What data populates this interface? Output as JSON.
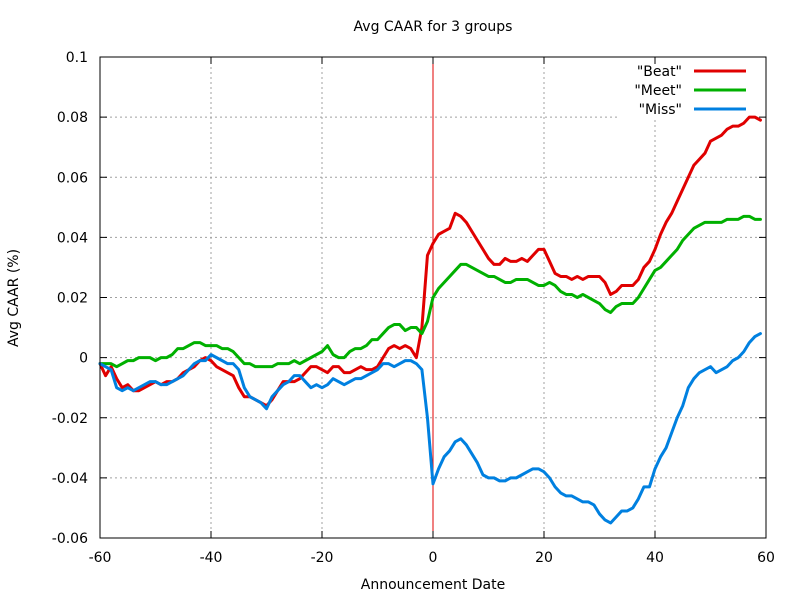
{
  "chart_data": {
    "type": "line",
    "title": "Avg CAAR for 3 groups",
    "xlabel": "Announcement Date",
    "ylabel": "Avg CAAR (%)",
    "xlim": [
      -60,
      60
    ],
    "ylim": [
      -0.06,
      0.1
    ],
    "xticks": [
      -60,
      -40,
      -20,
      0,
      20,
      40,
      60
    ],
    "xtick_labels": [
      "-60",
      "-40",
      "-20",
      "0",
      "20",
      "40",
      "60"
    ],
    "yticks": [
      -0.06,
      -0.04,
      -0.02,
      0,
      0.02,
      0.04,
      0.06,
      0.08,
      0.1
    ],
    "ytick_labels": [
      "-0.06",
      "-0.04",
      "-0.02",
      "0",
      "0.02",
      "0.04",
      "0.06",
      "0.08",
      "0.1"
    ],
    "grid": true,
    "legend_position": "top-right",
    "vertical_marker": {
      "x": 0,
      "color": "#e00000"
    },
    "series": [
      {
        "name": "\"Beat\"",
        "color": "#e00000",
        "x": [
          -60,
          -59,
          -58,
          -57,
          -56,
          -55,
          -54,
          -53,
          -52,
          -51,
          -50,
          -49,
          -48,
          -47,
          -46,
          -45,
          -44,
          -43,
          -42,
          -41,
          -40,
          -39,
          -38,
          -37,
          -36,
          -35,
          -34,
          -33,
          -32,
          -31,
          -30,
          -29,
          -28,
          -27,
          -26,
          -25,
          -24,
          -23,
          -22,
          -21,
          -20,
          -19,
          -18,
          -17,
          -16,
          -15,
          -14,
          -13,
          -12,
          -11,
          -10,
          -9,
          -8,
          -7,
          -6,
          -5,
          -4,
          -3,
          -2,
          -1,
          0,
          1,
          2,
          3,
          4,
          5,
          6,
          7,
          8,
          9,
          10,
          11,
          12,
          13,
          14,
          15,
          16,
          17,
          18,
          19,
          20,
          21,
          22,
          23,
          24,
          25,
          26,
          27,
          28,
          29,
          30,
          31,
          32,
          33,
          34,
          35,
          36,
          37,
          38,
          39,
          40,
          41,
          42,
          43,
          44,
          45,
          46,
          47,
          48,
          49,
          50,
          51,
          52,
          53,
          54,
          55,
          56,
          57,
          58,
          59
        ],
        "y": [
          -0.002,
          -0.006,
          -0.003,
          -0.007,
          -0.01,
          -0.009,
          -0.011,
          -0.011,
          -0.01,
          -0.009,
          -0.008,
          -0.009,
          -0.008,
          -0.008,
          -0.007,
          -0.005,
          -0.004,
          -0.003,
          -0.001,
          0.0,
          -0.001,
          -0.003,
          -0.004,
          -0.005,
          -0.006,
          -0.01,
          -0.013,
          -0.013,
          -0.014,
          -0.015,
          -0.016,
          -0.014,
          -0.011,
          -0.008,
          -0.008,
          -0.008,
          -0.007,
          -0.005,
          -0.003,
          -0.003,
          -0.004,
          -0.005,
          -0.003,
          -0.003,
          -0.005,
          -0.005,
          -0.004,
          -0.003,
          -0.004,
          -0.004,
          -0.003,
          0.0,
          0.003,
          0.004,
          0.003,
          0.004,
          0.003,
          0.0,
          0.01,
          0.034,
          0.038,
          0.041,
          0.042,
          0.043,
          0.048,
          0.047,
          0.045,
          0.042,
          0.039,
          0.036,
          0.033,
          0.031,
          0.031,
          0.033,
          0.032,
          0.032,
          0.033,
          0.032,
          0.034,
          0.036,
          0.036,
          0.032,
          0.028,
          0.027,
          0.027,
          0.026,
          0.027,
          0.026,
          0.027,
          0.027,
          0.027,
          0.025,
          0.021,
          0.022,
          0.024,
          0.024,
          0.024,
          0.026,
          0.03,
          0.032,
          0.036,
          0.041,
          0.045,
          0.048,
          0.052,
          0.056,
          0.06,
          0.064,
          0.066,
          0.068,
          0.072,
          0.073,
          0.074,
          0.076,
          0.077,
          0.077,
          0.078,
          0.08,
          0.08,
          0.079
        ]
      },
      {
        "name": "\"Meet\"",
        "color": "#00b000",
        "x": [
          -60,
          -59,
          -58,
          -57,
          -56,
          -55,
          -54,
          -53,
          -52,
          -51,
          -50,
          -49,
          -48,
          -47,
          -46,
          -45,
          -44,
          -43,
          -42,
          -41,
          -40,
          -39,
          -38,
          -37,
          -36,
          -35,
          -34,
          -33,
          -32,
          -31,
          -30,
          -29,
          -28,
          -27,
          -26,
          -25,
          -24,
          -23,
          -22,
          -21,
          -20,
          -19,
          -18,
          -17,
          -16,
          -15,
          -14,
          -13,
          -12,
          -11,
          -10,
          -9,
          -8,
          -7,
          -6,
          -5,
          -4,
          -3,
          -2,
          -1,
          0,
          1,
          2,
          3,
          4,
          5,
          6,
          7,
          8,
          9,
          10,
          11,
          12,
          13,
          14,
          15,
          16,
          17,
          18,
          19,
          20,
          21,
          22,
          23,
          24,
          25,
          26,
          27,
          28,
          29,
          30,
          31,
          32,
          33,
          34,
          35,
          36,
          37,
          38,
          39,
          40,
          41,
          42,
          43,
          44,
          45,
          46,
          47,
          48,
          49,
          50,
          51,
          52,
          53,
          54,
          55,
          56,
          57,
          58,
          59
        ],
        "y": [
          -0.002,
          -0.002,
          -0.002,
          -0.003,
          -0.002,
          -0.001,
          -0.001,
          0.0,
          0.0,
          0.0,
          -0.001,
          0.0,
          0.0,
          0.001,
          0.003,
          0.003,
          0.004,
          0.005,
          0.005,
          0.004,
          0.004,
          0.004,
          0.003,
          0.003,
          0.002,
          0.0,
          -0.002,
          -0.002,
          -0.003,
          -0.003,
          -0.003,
          -0.003,
          -0.002,
          -0.002,
          -0.002,
          -0.001,
          -0.002,
          -0.001,
          0.0,
          0.001,
          0.002,
          0.004,
          0.001,
          0.0,
          0.0,
          0.002,
          0.003,
          0.003,
          0.004,
          0.006,
          0.006,
          0.008,
          0.01,
          0.011,
          0.011,
          0.009,
          0.01,
          0.01,
          0.008,
          0.012,
          0.02,
          0.023,
          0.025,
          0.027,
          0.029,
          0.031,
          0.031,
          0.03,
          0.029,
          0.028,
          0.027,
          0.027,
          0.026,
          0.025,
          0.025,
          0.026,
          0.026,
          0.026,
          0.025,
          0.024,
          0.024,
          0.025,
          0.024,
          0.022,
          0.021,
          0.021,
          0.02,
          0.021,
          0.02,
          0.019,
          0.018,
          0.016,
          0.015,
          0.017,
          0.018,
          0.018,
          0.018,
          0.02,
          0.023,
          0.026,
          0.029,
          0.03,
          0.032,
          0.034,
          0.036,
          0.039,
          0.041,
          0.043,
          0.044,
          0.045,
          0.045,
          0.045,
          0.045,
          0.046,
          0.046,
          0.046,
          0.047,
          0.047,
          0.046,
          0.046
        ]
      },
      {
        "name": "\"Miss\"",
        "color": "#0080e0",
        "x": [
          -60,
          -59,
          -58,
          -57,
          -56,
          -55,
          -54,
          -53,
          -52,
          -51,
          -50,
          -49,
          -48,
          -47,
          -46,
          -45,
          -44,
          -43,
          -42,
          -41,
          -40,
          -39,
          -38,
          -37,
          -36,
          -35,
          -34,
          -33,
          -32,
          -31,
          -30,
          -29,
          -28,
          -27,
          -26,
          -25,
          -24,
          -23,
          -22,
          -21,
          -20,
          -19,
          -18,
          -17,
          -16,
          -15,
          -14,
          -13,
          -12,
          -11,
          -10,
          -9,
          -8,
          -7,
          -6,
          -5,
          -4,
          -3,
          -2,
          -1,
          0,
          1,
          2,
          3,
          4,
          5,
          6,
          7,
          8,
          9,
          10,
          11,
          12,
          13,
          14,
          15,
          16,
          17,
          18,
          19,
          20,
          21,
          22,
          23,
          24,
          25,
          26,
          27,
          28,
          29,
          30,
          31,
          32,
          33,
          34,
          35,
          36,
          37,
          38,
          39,
          40,
          41,
          42,
          43,
          44,
          45,
          46,
          47,
          48,
          49,
          50,
          51,
          52,
          53,
          54,
          55,
          56,
          57,
          58,
          59
        ],
        "y": [
          -0.002,
          -0.003,
          -0.004,
          -0.01,
          -0.011,
          -0.01,
          -0.011,
          -0.01,
          -0.009,
          -0.008,
          -0.008,
          -0.009,
          -0.009,
          -0.008,
          -0.007,
          -0.006,
          -0.004,
          -0.002,
          -0.001,
          -0.001,
          0.001,
          0.0,
          -0.001,
          -0.002,
          -0.002,
          -0.004,
          -0.01,
          -0.013,
          -0.014,
          -0.015,
          -0.017,
          -0.013,
          -0.011,
          -0.009,
          -0.008,
          -0.006,
          -0.006,
          -0.008,
          -0.01,
          -0.009,
          -0.01,
          -0.009,
          -0.007,
          -0.008,
          -0.009,
          -0.008,
          -0.007,
          -0.007,
          -0.006,
          -0.005,
          -0.004,
          -0.002,
          -0.002,
          -0.003,
          -0.002,
          -0.001,
          -0.001,
          -0.002,
          -0.004,
          -0.02,
          -0.042,
          -0.037,
          -0.033,
          -0.031,
          -0.028,
          -0.027,
          -0.029,
          -0.032,
          -0.035,
          -0.039,
          -0.04,
          -0.04,
          -0.041,
          -0.041,
          -0.04,
          -0.04,
          -0.039,
          -0.038,
          -0.037,
          -0.037,
          -0.038,
          -0.04,
          -0.043,
          -0.045,
          -0.046,
          -0.046,
          -0.047,
          -0.048,
          -0.048,
          -0.049,
          -0.052,
          -0.054,
          -0.055,
          -0.053,
          -0.051,
          -0.051,
          -0.05,
          -0.047,
          -0.043,
          -0.043,
          -0.037,
          -0.033,
          -0.03,
          -0.025,
          -0.02,
          -0.016,
          -0.01,
          -0.007,
          -0.005,
          -0.004,
          -0.003,
          -0.005,
          -0.004,
          -0.003,
          -0.001,
          0.0,
          0.002,
          0.005,
          0.007,
          0.008
        ]
      }
    ]
  }
}
